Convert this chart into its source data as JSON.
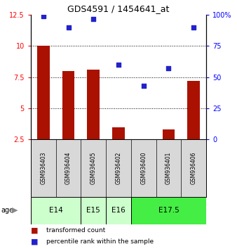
{
  "title": "GDS4591 / 1454641_at",
  "samples": [
    "GSM936403",
    "GSM936404",
    "GSM936405",
    "GSM936402",
    "GSM936400",
    "GSM936401",
    "GSM936406"
  ],
  "transformed_count": [
    10.05,
    8.0,
    8.1,
    3.5,
    2.5,
    3.3,
    7.2
  ],
  "percentile_rank": [
    99,
    90,
    97,
    60,
    43,
    57,
    90
  ],
  "age_groups": [
    {
      "label": "E14",
      "span": [
        0,
        2
      ],
      "color": "#ccffcc"
    },
    {
      "label": "E15",
      "span": [
        2,
        3
      ],
      "color": "#ccffcc"
    },
    {
      "label": "E16",
      "span": [
        3,
        4
      ],
      "color": "#ccffcc"
    },
    {
      "label": "E17.5",
      "span": [
        4,
        7
      ],
      "color": "#44ee44"
    }
  ],
  "ylim_left": [
    2.5,
    12.5
  ],
  "ylim_right": [
    0,
    100
  ],
  "yticks_left": [
    2.5,
    5.0,
    7.5,
    10.0,
    12.5
  ],
  "yticks_right": [
    0,
    25,
    50,
    75,
    100
  ],
  "bar_color": "#aa1100",
  "dot_color": "#2222cc",
  "bar_width": 0.5,
  "sample_bg_color": "#d8d8d8",
  "legend_labels": [
    "transformed count",
    "percentile rank within the sample"
  ]
}
